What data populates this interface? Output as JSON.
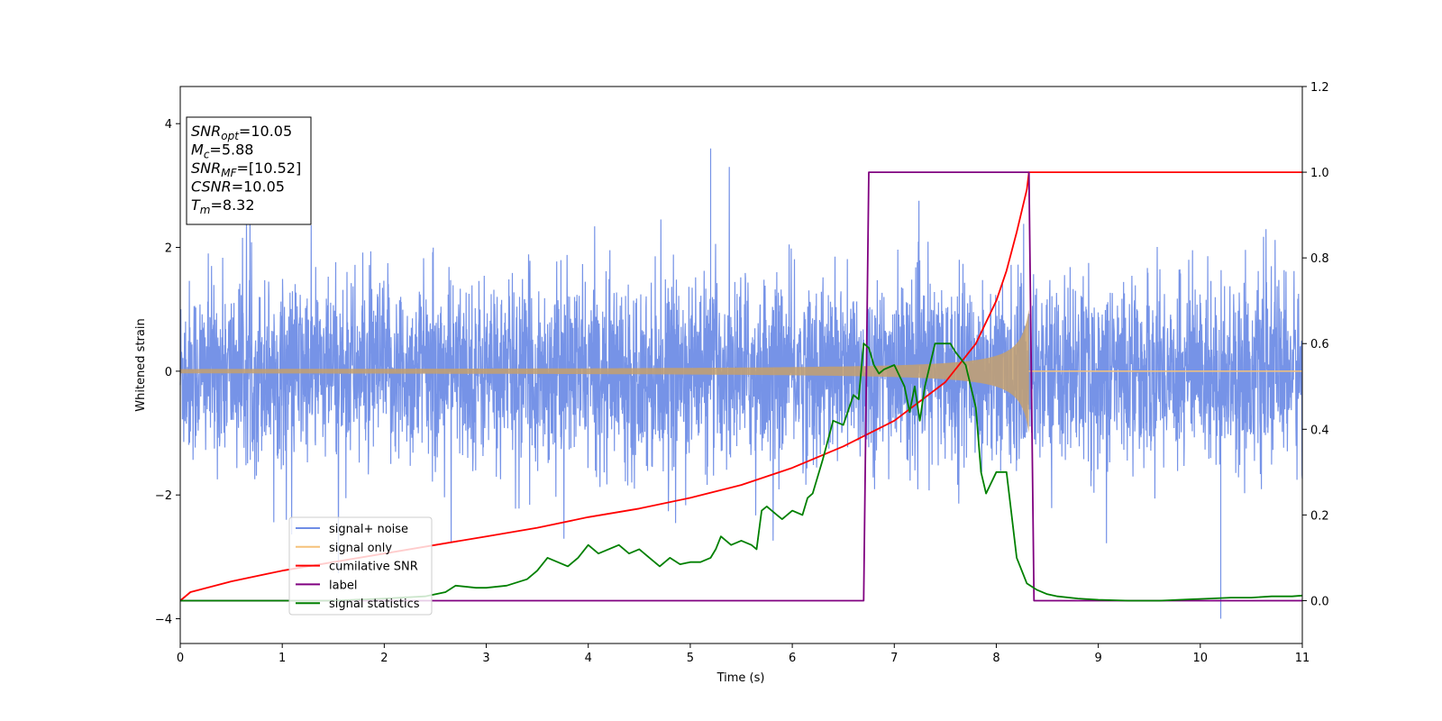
{
  "chart_data": {
    "type": "line",
    "xlabel": "Time (s)",
    "ylabel": "Whitened strain",
    "xlim": [
      0,
      11
    ],
    "ylim_left": [
      -4.4,
      4.6
    ],
    "ylim_right": [
      -0.1,
      1.2
    ],
    "x_ticks": [
      0,
      1,
      2,
      3,
      4,
      5,
      6,
      7,
      8,
      9,
      10,
      11
    ],
    "y_ticks_left": [
      -4,
      -2,
      0,
      2,
      4
    ],
    "y_ticks_right": [
      "0.0",
      "0.2",
      "0.4",
      "0.6",
      "0.8",
      "1.0",
      "1.2"
    ],
    "annotation": [
      {
        "sym": "SNR",
        "sub": "opt",
        "value": "=10.05"
      },
      {
        "sym": "M",
        "sub": "c",
        "value": "=5.88"
      },
      {
        "sym": "SNR",
        "sub": "MF",
        "value": "=[10.52]"
      },
      {
        "sym": "CSNR",
        "sub": "",
        "value": "=10.05"
      },
      {
        "sym": "T",
        "sub": "m",
        "value": "=8.32"
      }
    ],
    "legend_position": "lower-left",
    "series": [
      {
        "name": "signal+ noise",
        "axis": "left",
        "color": "#6f8de6",
        "noise_amplitude": 1.2,
        "noise_peaks": [
          3.6,
          -4.0
        ],
        "time_span": [
          0,
          11
        ]
      },
      {
        "name": "signal only",
        "axis": "left",
        "color": "#f5c27a",
        "chirp_start": 0.0,
        "chirp_end": 8.32,
        "amplitude_start": 0.02,
        "amplitude_end": 1.0
      },
      {
        "name": "cumilative SNR",
        "axis": "right",
        "color": "#ff0000",
        "x": [
          0,
          0.1,
          0.5,
          1,
          1.5,
          2,
          2.5,
          3,
          3.5,
          4,
          4.5,
          5,
          5.5,
          6,
          6.5,
          7,
          7.5,
          7.8,
          8.0,
          8.1,
          8.2,
          8.3,
          8.32,
          11
        ],
        "y": [
          0.0,
          0.02,
          0.045,
          0.07,
          0.09,
          0.11,
          0.13,
          0.15,
          0.17,
          0.195,
          0.215,
          0.24,
          0.27,
          0.31,
          0.36,
          0.42,
          0.51,
          0.6,
          0.7,
          0.77,
          0.86,
          0.96,
          1.0,
          1.0
        ]
      },
      {
        "name": "label",
        "axis": "right",
        "color": "#800080",
        "x": [
          0,
          6.7,
          6.75,
          8.32,
          8.37,
          11
        ],
        "y": [
          0,
          0,
          1,
          1,
          0,
          0
        ]
      },
      {
        "name": "signal statistics",
        "axis": "right",
        "color": "#008000",
        "x": [
          0,
          0.5,
          1,
          1.5,
          2,
          2.4,
          2.6,
          2.7,
          2.9,
          3.0,
          3.2,
          3.4,
          3.5,
          3.6,
          3.7,
          3.8,
          3.9,
          4.0,
          4.1,
          4.2,
          4.3,
          4.4,
          4.5,
          4.6,
          4.7,
          4.8,
          4.9,
          5.0,
          5.1,
          5.2,
          5.25,
          5.3,
          5.4,
          5.5,
          5.6,
          5.65,
          5.7,
          5.75,
          5.85,
          5.9,
          6.0,
          6.1,
          6.15,
          6.2,
          6.3,
          6.4,
          6.5,
          6.6,
          6.65,
          6.7,
          6.75,
          6.8,
          6.85,
          6.9,
          7.0,
          7.1,
          7.15,
          7.2,
          7.25,
          7.3,
          7.4,
          7.5,
          7.55,
          7.6,
          7.7,
          7.8,
          7.85,
          7.9,
          8.0,
          8.1,
          8.2,
          8.3,
          8.4,
          8.5,
          8.6,
          8.8,
          9.0,
          9.3,
          9.6,
          9.9,
          10.1,
          10.3,
          10.5,
          10.7,
          10.9,
          11.0
        ],
        "y": [
          0.0,
          0.0,
          0.0,
          0.0,
          0.005,
          0.01,
          0.02,
          0.035,
          0.03,
          0.03,
          0.035,
          0.05,
          0.07,
          0.1,
          0.09,
          0.08,
          0.1,
          0.13,
          0.11,
          0.12,
          0.13,
          0.11,
          0.12,
          0.1,
          0.08,
          0.1,
          0.085,
          0.09,
          0.09,
          0.1,
          0.12,
          0.15,
          0.13,
          0.14,
          0.13,
          0.12,
          0.21,
          0.22,
          0.2,
          0.19,
          0.21,
          0.2,
          0.24,
          0.25,
          0.33,
          0.42,
          0.41,
          0.48,
          0.47,
          0.6,
          0.59,
          0.55,
          0.53,
          0.54,
          0.55,
          0.5,
          0.44,
          0.5,
          0.42,
          0.5,
          0.6,
          0.6,
          0.6,
          0.58,
          0.55,
          0.45,
          0.3,
          0.25,
          0.3,
          0.3,
          0.1,
          0.04,
          0.025,
          0.015,
          0.01,
          0.005,
          0.002,
          0.0,
          0.0,
          0.003,
          0.005,
          0.007,
          0.007,
          0.01,
          0.01,
          0.012
        ]
      }
    ]
  }
}
